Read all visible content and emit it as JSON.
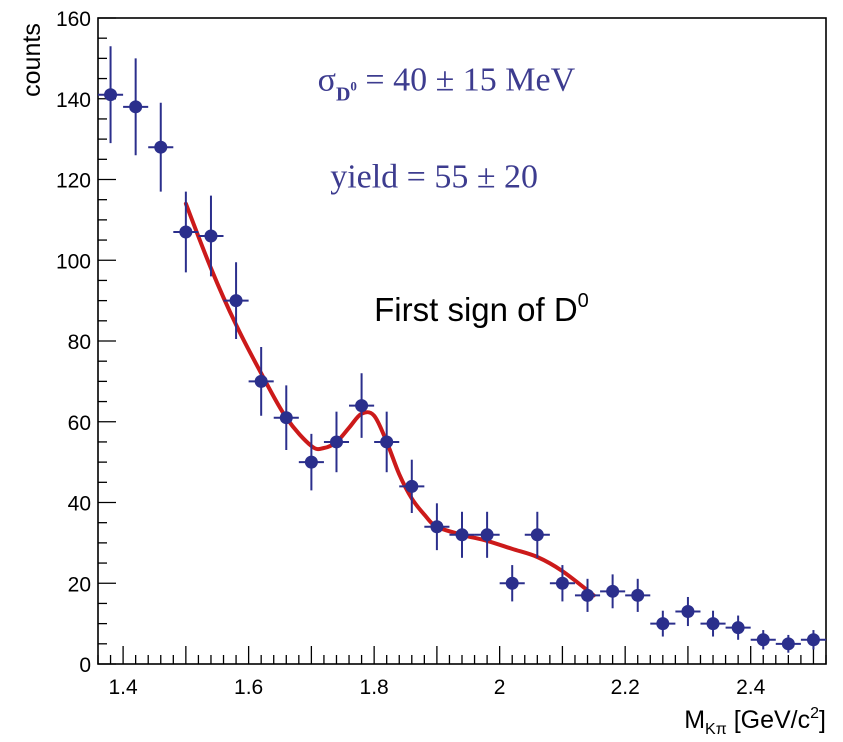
{
  "chart_data": {
    "type": "scatter",
    "title": "",
    "xlabel": {
      "main": "M",
      "sub": "Kπ",
      "unit": " [GeV/c",
      "sup": "2",
      "close": "]"
    },
    "ylabel": "counts",
    "xlim": [
      1.36,
      2.52
    ],
    "ylim": [
      0,
      160
    ],
    "xticks": [
      1.4,
      1.6,
      1.8,
      2,
      2.2,
      2.4
    ],
    "xtick_labels": [
      "1.4",
      "1.6",
      "1.8",
      "2",
      "2.2",
      "2.4"
    ],
    "yticks": [
      0,
      20,
      40,
      60,
      80,
      100,
      120,
      140,
      160
    ],
    "ytick_labels": [
      "0",
      "20",
      "40",
      "60",
      "80",
      "100",
      "120",
      "140",
      "160"
    ],
    "grid": false,
    "legend": "none",
    "colors": {
      "points": "#2b2f8c",
      "fit": "#cc1a1a",
      "annotation": "#3d3c8f"
    },
    "series": [
      {
        "type": "points-with-errors",
        "x_half_width": 0.02,
        "points": [
          {
            "x": 1.38,
            "y": 141,
            "err": 12
          },
          {
            "x": 1.42,
            "y": 138,
            "err": 12
          },
          {
            "x": 1.46,
            "y": 128,
            "err": 11
          },
          {
            "x": 1.5,
            "y": 107,
            "err": 10
          },
          {
            "x": 1.54,
            "y": 106,
            "err": 10
          },
          {
            "x": 1.58,
            "y": 90,
            "err": 9.5
          },
          {
            "x": 1.62,
            "y": 70,
            "err": 8.5
          },
          {
            "x": 1.66,
            "y": 61,
            "err": 8
          },
          {
            "x": 1.7,
            "y": 50,
            "err": 7
          },
          {
            "x": 1.74,
            "y": 55,
            "err": 7.5
          },
          {
            "x": 1.78,
            "y": 64,
            "err": 8
          },
          {
            "x": 1.82,
            "y": 55,
            "err": 7.5
          },
          {
            "x": 1.86,
            "y": 44,
            "err": 6.6
          },
          {
            "x": 1.9,
            "y": 34,
            "err": 5.8
          },
          {
            "x": 1.94,
            "y": 32,
            "err": 5.7
          },
          {
            "x": 1.98,
            "y": 32,
            "err": 5.7
          },
          {
            "x": 2.02,
            "y": 20,
            "err": 4.5
          },
          {
            "x": 2.06,
            "y": 32,
            "err": 5.7
          },
          {
            "x": 2.1,
            "y": 20,
            "err": 4.5
          },
          {
            "x": 2.14,
            "y": 17,
            "err": 4.1
          },
          {
            "x": 2.18,
            "y": 18,
            "err": 4.2
          },
          {
            "x": 2.22,
            "y": 17,
            "err": 4.1
          },
          {
            "x": 2.26,
            "y": 10,
            "err": 3.2
          },
          {
            "x": 2.3,
            "y": 13,
            "err": 3.6
          },
          {
            "x": 2.34,
            "y": 10,
            "err": 3.2
          },
          {
            "x": 2.38,
            "y": 9,
            "err": 3
          },
          {
            "x": 2.42,
            "y": 6,
            "err": 2.4
          },
          {
            "x": 2.46,
            "y": 5,
            "err": 2.2
          },
          {
            "x": 2.5,
            "y": 6,
            "err": 2.4
          }
        ]
      },
      {
        "type": "line",
        "points": [
          {
            "x": 1.5,
            "y": 114
          },
          {
            "x": 1.54,
            "y": 98
          },
          {
            "x": 1.58,
            "y": 84
          },
          {
            "x": 1.62,
            "y": 72
          },
          {
            "x": 1.66,
            "y": 61
          },
          {
            "x": 1.7,
            "y": 54
          },
          {
            "x": 1.72,
            "y": 53.5
          },
          {
            "x": 1.74,
            "y": 55
          },
          {
            "x": 1.76,
            "y": 58.5
          },
          {
            "x": 1.78,
            "y": 62
          },
          {
            "x": 1.8,
            "y": 61.5
          },
          {
            "x": 1.82,
            "y": 55
          },
          {
            "x": 1.84,
            "y": 47
          },
          {
            "x": 1.86,
            "y": 41
          },
          {
            "x": 1.88,
            "y": 37
          },
          {
            "x": 1.9,
            "y": 34
          },
          {
            "x": 1.94,
            "y": 32
          },
          {
            "x": 1.98,
            "y": 30.5
          },
          {
            "x": 2.02,
            "y": 28.5
          },
          {
            "x": 2.06,
            "y": 26.5
          },
          {
            "x": 2.1,
            "y": 23
          },
          {
            "x": 2.15,
            "y": 17
          }
        ]
      }
    ],
    "annotations": [
      {
        "id": "sigma",
        "symbol": "σ",
        "sub": "D",
        "subsup": "0",
        "text": " = 40 ± 15 MeV",
        "x": 1.71,
        "y": 142
      },
      {
        "id": "yield",
        "text": "yield = 55 ± 20",
        "x": 1.73,
        "y": 118
      },
      {
        "id": "first-sign",
        "text": "First sign of D",
        "sup": "0",
        "x": 1.8,
        "y": 85
      }
    ]
  }
}
